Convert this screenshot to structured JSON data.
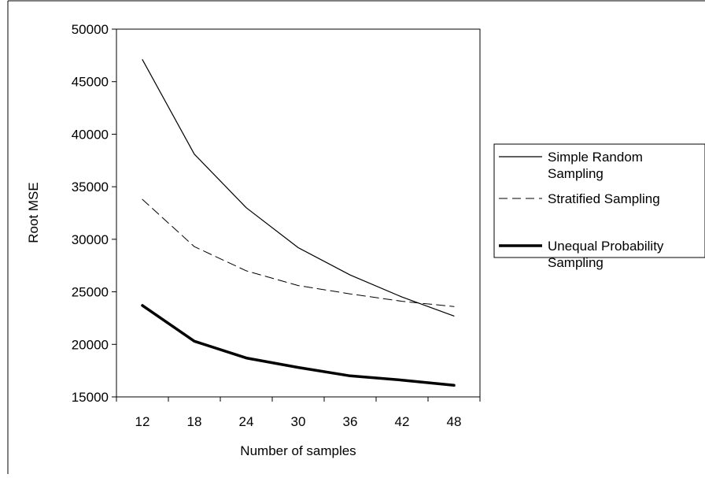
{
  "chart_data": {
    "type": "line",
    "title": "",
    "xlabel": "Number of samples",
    "ylabel": "Root MSE",
    "x": [
      12,
      18,
      24,
      30,
      36,
      42,
      48
    ],
    "xticks": [
      "12",
      "18",
      "24",
      "30",
      "36",
      "42",
      "48"
    ],
    "yticks": [
      "15000",
      "20000",
      "25000",
      "30000",
      "35000",
      "40000",
      "45000",
      "50000"
    ],
    "ylim": [
      15000,
      50000
    ],
    "grid": false,
    "legend_position": "right",
    "series": [
      {
        "name": "Simple Random Sampling",
        "values": [
          47100,
          38100,
          33000,
          29200,
          26600,
          24500,
          22700
        ],
        "style": "solid",
        "color": "#000000"
      },
      {
        "name": "Stratified Sampling",
        "values": [
          33800,
          29300,
          27000,
          25600,
          24800,
          24100,
          23600
        ],
        "style": "dashed",
        "color": "#000000"
      },
      {
        "name": "Unequal Probability Sampling",
        "values": [
          23700,
          20300,
          18700,
          17800,
          17000,
          16600,
          16100
        ],
        "style": "bold",
        "color": "#000000"
      }
    ]
  }
}
